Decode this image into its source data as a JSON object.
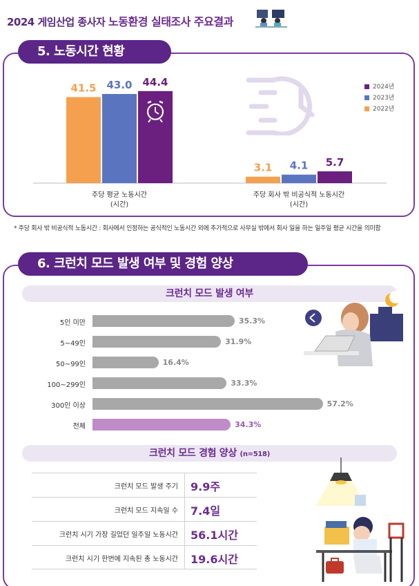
{
  "header": {
    "title_part1": "2024 게임산업 종사자",
    "title_part2": "노동환경 실태조사 주요결과"
  },
  "section5": {
    "title": "5. 노동시간 현황",
    "legend": [
      {
        "label": "2024년",
        "color": "#6b1f7f"
      },
      {
        "label": "2023년",
        "color": "#5b74c0"
      },
      {
        "label": "2022년",
        "color": "#f5a04f"
      }
    ],
    "chart_data": {
      "type": "bar",
      "categories": [
        "주당 평균 노동시간\n(시간)",
        "주당 회사 밖 비공식적 노동시간\n(시간)"
      ],
      "category_lines": [
        [
          "주당 평균 노동시간",
          "(시간)"
        ],
        [
          "주당 회사 밖 비공식적 노동시간",
          "(시간)"
        ]
      ],
      "series": [
        {
          "name": "2022년",
          "color": "#f5a04f",
          "values": [
            41.5,
            3.1
          ],
          "labels": [
            "41.5",
            "3.1"
          ]
        },
        {
          "name": "2023년",
          "color": "#5b74c0",
          "values": [
            43.0,
            4.1
          ],
          "labels": [
            "43.0",
            "4.1"
          ]
        },
        {
          "name": "2024년",
          "color": "#6b1f7f",
          "values": [
            44.4,
            5.7
          ],
          "labels": [
            "44.4",
            "5.7"
          ]
        }
      ],
      "ylim": [
        0,
        50
      ]
    },
    "note": "* 주당 회사 밖 비공식적 노동시간 : 회사에서 인정하는 공식적인 노동시간 외에 추가적으로 사무실 밖에서 회사 일을 하는 일주일 평균 시간을 의미함"
  },
  "section6": {
    "title": "6. 크런치 모드 발생 여부 및 경험 양상",
    "occurrence_title": "크런치 모드 발생 여부",
    "occurrence_chart": {
      "type": "bar",
      "orientation": "horizontal",
      "categories": [
        "5인 미만",
        "5~49인",
        "50~99인",
        "100~299인",
        "300인 이상",
        "전체"
      ],
      "values": [
        35.3,
        31.9,
        16.4,
        33.3,
        57.2,
        34.3
      ],
      "labels": [
        "35.3%",
        "31.9%",
        "16.4%",
        "33.3%",
        "57.2%",
        "34.3%"
      ],
      "xlim": [
        0,
        60
      ]
    },
    "experience_title": "크런치 모드 경험 양상",
    "experience_n": "(n=518)",
    "experience_rows": [
      {
        "label": "크런치 모드 발생 주기",
        "value": "9.9주"
      },
      {
        "label": "크런치 모드 지속일 수",
        "value": "7.4일"
      },
      {
        "label": "크런치 시기 가장 길었던 일주일 노동시간",
        "value": "56.1시간"
      },
      {
        "label": "크런치 시기 한번에 지속된 총 노동시간",
        "value": "19.6시간"
      }
    ]
  }
}
